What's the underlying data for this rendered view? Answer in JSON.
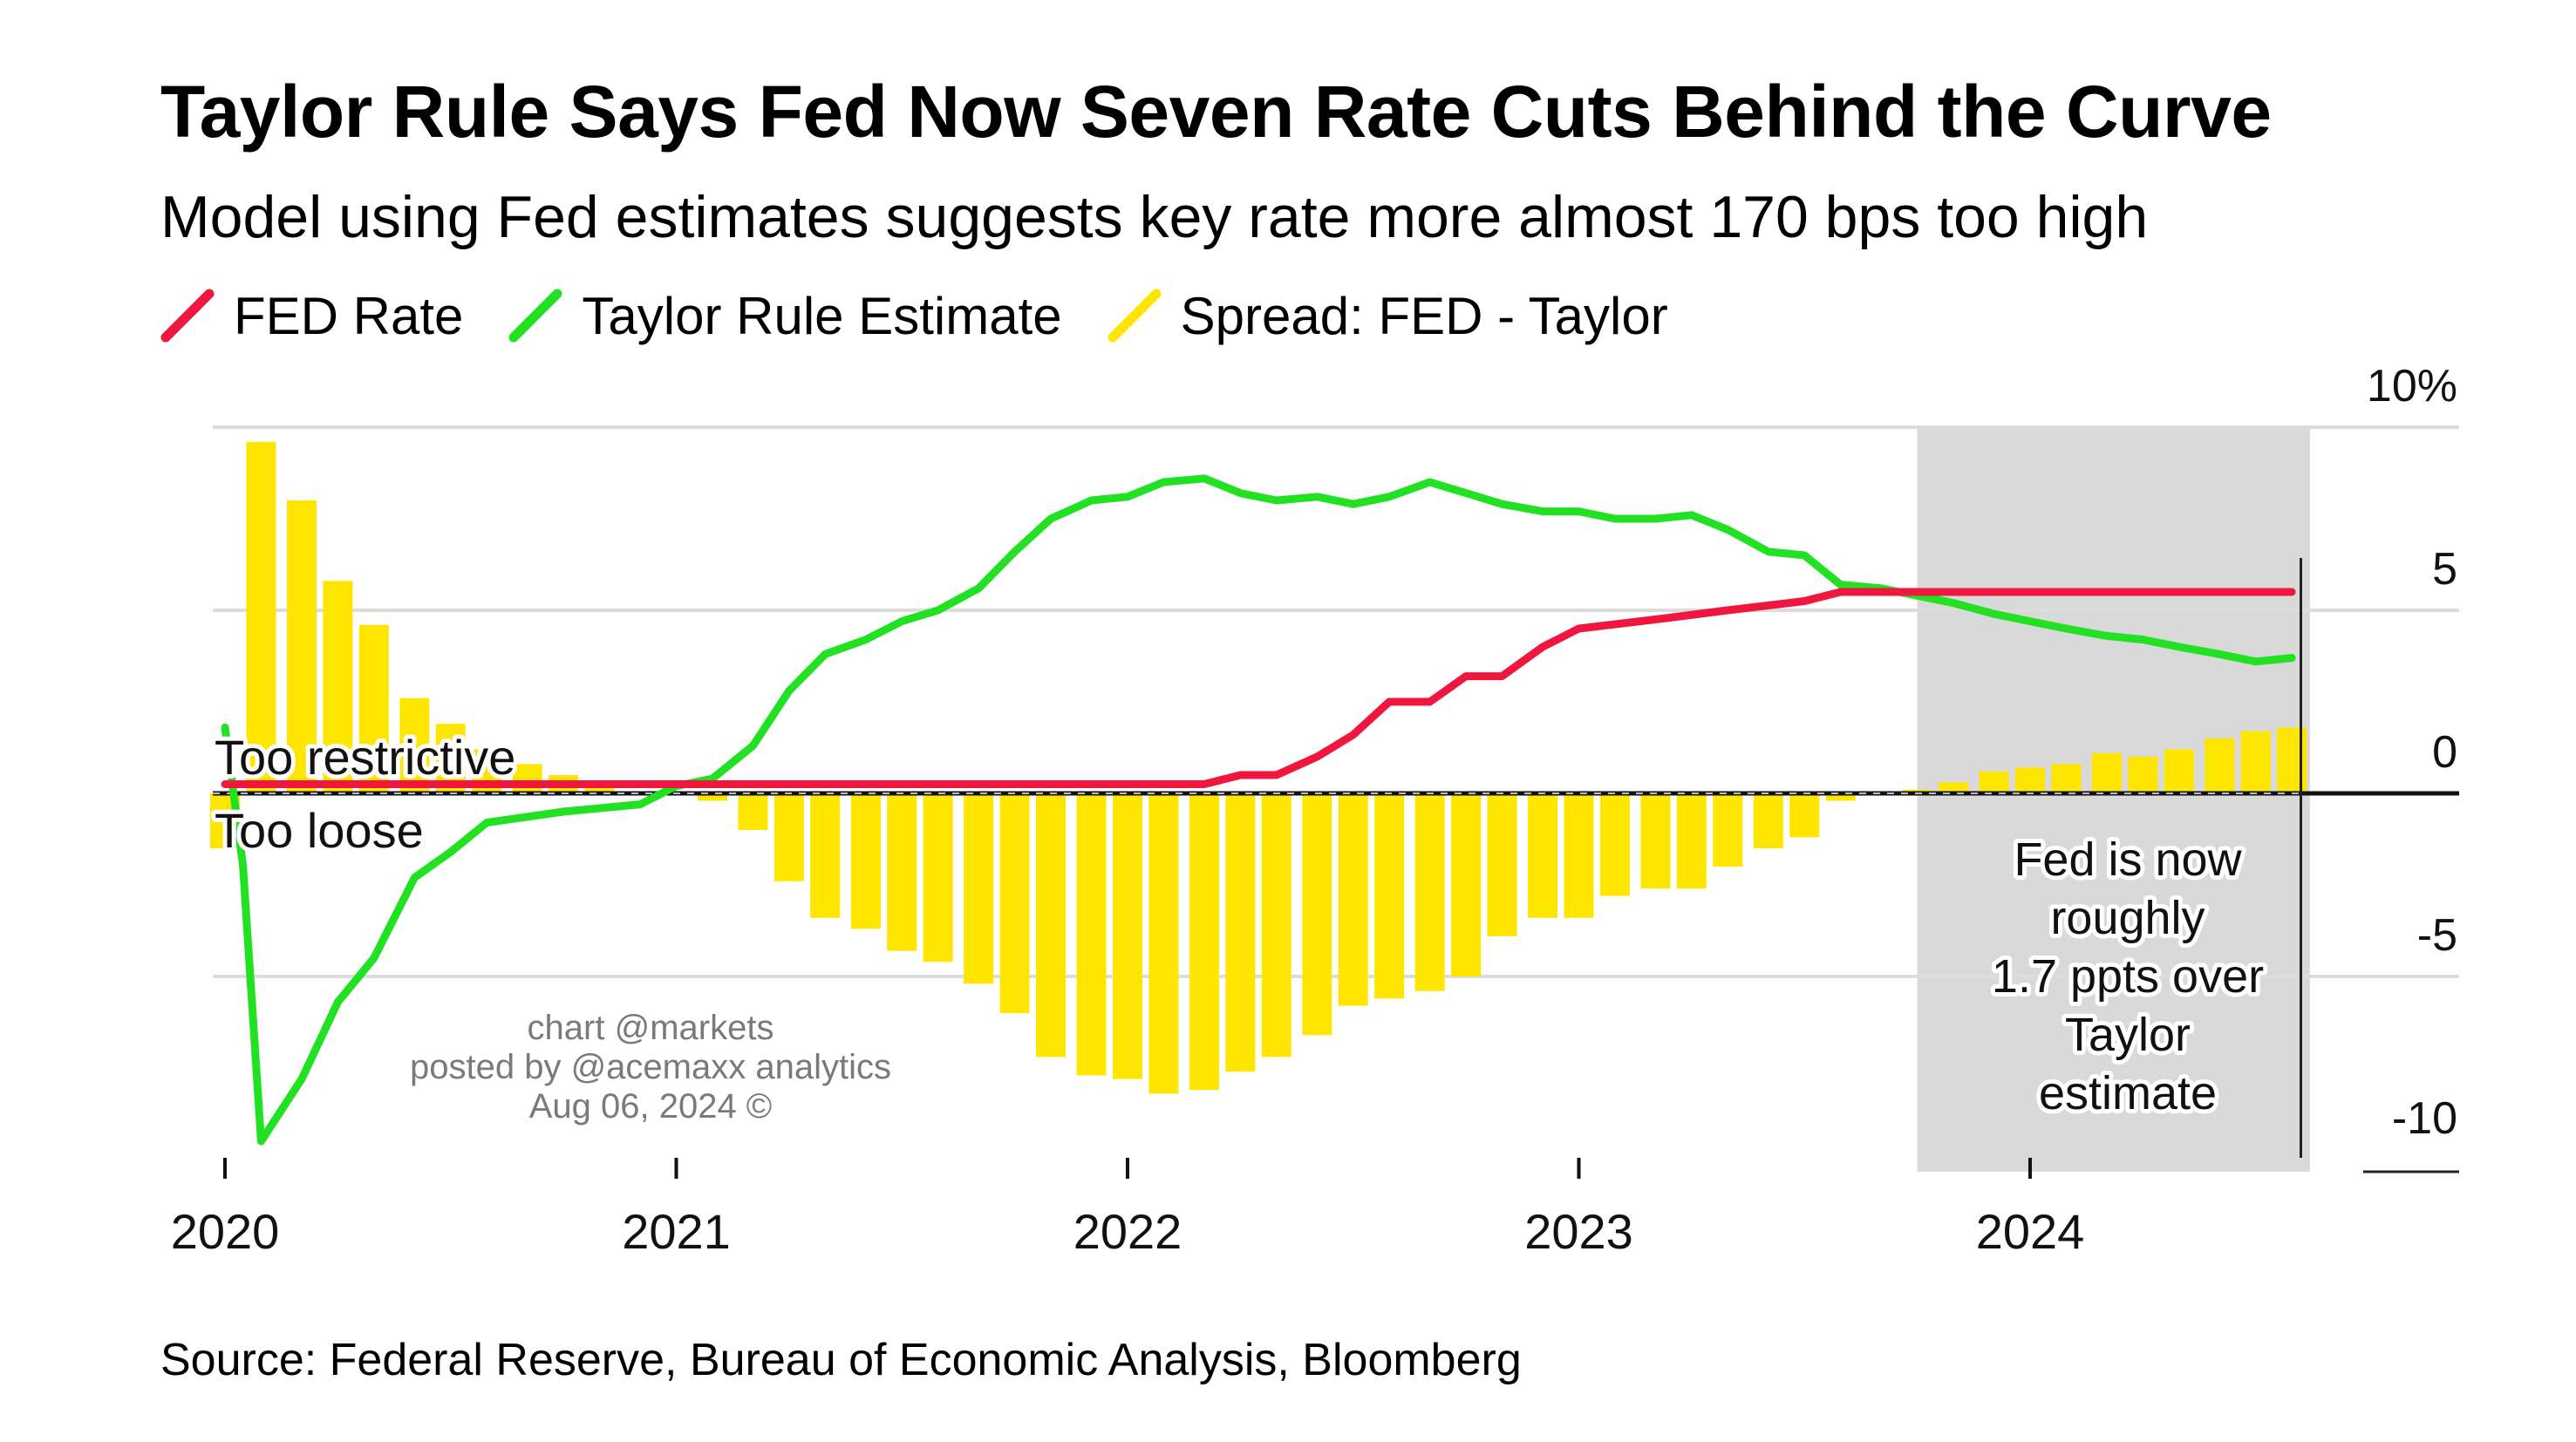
{
  "title": "Taylor Rule Says Fed Now Seven Rate Cuts Behind the Curve",
  "subtitle": "Model using Fed estimates suggests key rate more almost 170 bps too high",
  "source": "Source: Federal Reserve, Bureau of Economic Analysis, Bloomberg",
  "colors": {
    "fed": "#f0173f",
    "taylor": "#22e022",
    "spread": "#ffe600",
    "shade": "#d9d9d9",
    "grid": "#dcdcdc"
  },
  "legend": [
    {
      "label": "FED Rate",
      "color": "#f0173f"
    },
    {
      "label": "Taylor Rule Estimate",
      "color": "#22e022"
    },
    {
      "label": "Spread: FED - Taylor",
      "color": "#ffe600"
    }
  ],
  "annotations": {
    "too_restrictive": "Too restrictive",
    "too_loose": "Too loose",
    "callout": [
      "Fed is now",
      "roughly",
      "1.7 ppts over",
      "Taylor",
      "estimate"
    ],
    "credit": [
      "chart @markets",
      "posted by @acemaxx analytics",
      "Aug 06, 2024 ©"
    ]
  },
  "chart_data": {
    "type": "line",
    "xlim": [
      2020.0,
      2024.68
    ],
    "ylim": [
      -10,
      10
    ],
    "yticks": [
      {
        "value": 10,
        "label": "10%"
      },
      {
        "value": 5,
        "label": "5"
      },
      {
        "value": 0,
        "label": "0"
      },
      {
        "value": -5,
        "label": "-5"
      },
      {
        "value": -10,
        "label": "-10"
      }
    ],
    "xticks": [
      {
        "value": 2020.0,
        "label": "2020"
      },
      {
        "value": 2021.0,
        "label": "2021"
      },
      {
        "value": 2022.0,
        "label": "2022"
      },
      {
        "value": 2023.0,
        "label": "2023"
      },
      {
        "value": 2024.0,
        "label": "2024"
      }
    ],
    "shaded_range": [
      2023.75,
      2024.62
    ],
    "grid": true,
    "legend_position": "top-left",
    "series": [
      {
        "name": "FED Rate",
        "type": "line",
        "x": [
          2020.0,
          2021.0,
          2022.0,
          2022.17,
          2022.25,
          2022.33,
          2022.42,
          2022.5,
          2022.58,
          2022.67,
          2022.75,
          2022.83,
          2022.92,
          2023.0,
          2023.17,
          2023.33,
          2023.5,
          2023.58,
          2024.0,
          2024.58
        ],
        "y": [
          0.25,
          0.25,
          0.25,
          0.25,
          0.5,
          0.5,
          1.0,
          1.6,
          2.5,
          2.5,
          3.2,
          3.2,
          4.0,
          4.5,
          4.75,
          5.0,
          5.25,
          5.5,
          5.5,
          5.5
        ]
      },
      {
        "name": "Taylor Rule Estimate",
        "type": "line",
        "x": [
          2020.0,
          2020.04,
          2020.08,
          2020.17,
          2020.25,
          2020.33,
          2020.42,
          2020.5,
          2020.58,
          2020.75,
          2020.92,
          2021.0,
          2021.08,
          2021.17,
          2021.25,
          2021.33,
          2021.42,
          2021.5,
          2021.58,
          2021.67,
          2021.75,
          2021.83,
          2021.92,
          2022.0,
          2022.08,
          2022.17,
          2022.25,
          2022.33,
          2022.42,
          2022.5,
          2022.58,
          2022.67,
          2022.75,
          2022.83,
          2022.92,
          2023.0,
          2023.08,
          2023.17,
          2023.25,
          2023.33,
          2023.42,
          2023.5,
          2023.58,
          2023.67,
          2023.75,
          2023.83,
          2023.92,
          2024.0,
          2024.08,
          2024.17,
          2024.25,
          2024.33,
          2024.42,
          2024.5,
          2024.58
        ],
        "y": [
          1.8,
          -2.0,
          -9.5,
          -7.8,
          -5.7,
          -4.5,
          -2.3,
          -1.6,
          -0.8,
          -0.5,
          -0.3,
          0.2,
          0.4,
          1.3,
          2.8,
          3.8,
          4.2,
          4.7,
          5.0,
          5.6,
          6.6,
          7.5,
          8.0,
          8.1,
          8.5,
          8.6,
          8.2,
          8.0,
          8.1,
          7.9,
          8.1,
          8.5,
          8.2,
          7.9,
          7.7,
          7.7,
          7.5,
          7.5,
          7.6,
          7.2,
          6.6,
          6.5,
          5.7,
          5.6,
          5.4,
          5.2,
          4.9,
          4.7,
          4.5,
          4.3,
          4.2,
          4.0,
          3.8,
          3.6,
          3.7
        ]
      },
      {
        "name": "Spread: FED - Taylor",
        "type": "bar",
        "x": [
          2020.0,
          2020.08,
          2020.17,
          2020.25,
          2020.33,
          2020.42,
          2020.5,
          2020.58,
          2020.67,
          2020.75,
          2020.83,
          2020.92,
          2021.0,
          2021.08,
          2021.17,
          2021.25,
          2021.33,
          2021.42,
          2021.5,
          2021.58,
          2021.67,
          2021.75,
          2021.83,
          2021.92,
          2022.0,
          2022.08,
          2022.17,
          2022.25,
          2022.33,
          2022.42,
          2022.5,
          2022.58,
          2022.67,
          2022.75,
          2022.83,
          2022.92,
          2023.0,
          2023.08,
          2023.17,
          2023.25,
          2023.33,
          2023.42,
          2023.5,
          2023.58,
          2023.67,
          2023.75,
          2023.83,
          2023.92,
          2024.0,
          2024.08,
          2024.17,
          2024.25,
          2024.33,
          2024.42,
          2024.5,
          2024.58
        ],
        "y": [
          -1.5,
          9.6,
          8.0,
          5.8,
          4.6,
          2.6,
          1.9,
          1.2,
          0.8,
          0.5,
          0.2,
          0.0,
          0.0,
          -0.2,
          -1.0,
          -2.4,
          -3.4,
          -3.7,
          -4.3,
          -4.6,
          -5.2,
          -6.0,
          -7.2,
          -7.7,
          -7.8,
          -8.2,
          -8.1,
          -7.6,
          -7.2,
          -6.6,
          -5.8,
          -5.6,
          -5.4,
          -5.0,
          -3.9,
          -3.4,
          -3.4,
          -2.8,
          -2.6,
          -2.6,
          -2.0,
          -1.5,
          -1.2,
          -0.2,
          0.0,
          0.1,
          0.3,
          0.6,
          0.7,
          0.8,
          1.1,
          1.0,
          1.2,
          1.5,
          1.7,
          1.8
        ]
      }
    ]
  }
}
